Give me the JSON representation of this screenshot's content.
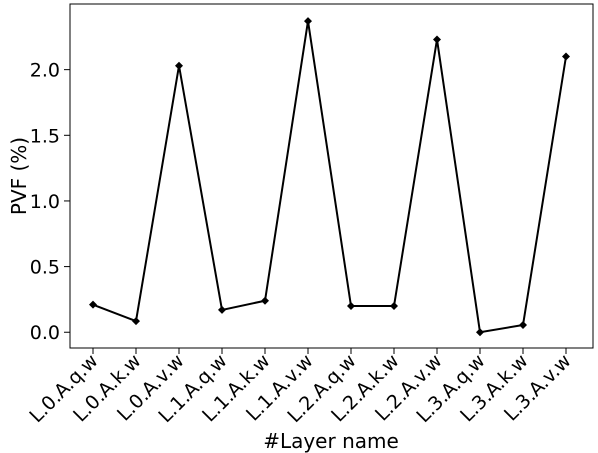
{
  "chart_data": {
    "type": "line",
    "title": "",
    "xlabel": "#Layer name",
    "ylabel": "PVF (%)",
    "categories": [
      "L.0.A.q.w",
      "L.0.A.k.w",
      "L.0.A.v.w",
      "L.1.A.q.w",
      "L.1.A.k.w",
      "L.1.A.v.w",
      "L.2.A.q.w",
      "L.2.A.k.w",
      "L.2.A.v.w",
      "L.3.A.q.w",
      "L.3.A.k.w",
      "L.3.A.v.w"
    ],
    "series": [
      {
        "values": [
          0.21,
          0.085,
          2.03,
          0.17,
          0.24,
          2.37,
          0.2,
          0.2,
          2.23,
          0.0,
          0.055,
          2.1
        ]
      }
    ],
    "ylim": [
      -0.12,
      2.5
    ],
    "yticks": [
      0.0,
      0.5,
      1.0,
      1.5,
      2.0
    ],
    "ytick_labels": [
      "0.0",
      "0.5",
      "1.0",
      "1.5",
      "2.0"
    ],
    "line_color": "#000000",
    "marker": "diamond",
    "grid": false,
    "legend": "none"
  }
}
